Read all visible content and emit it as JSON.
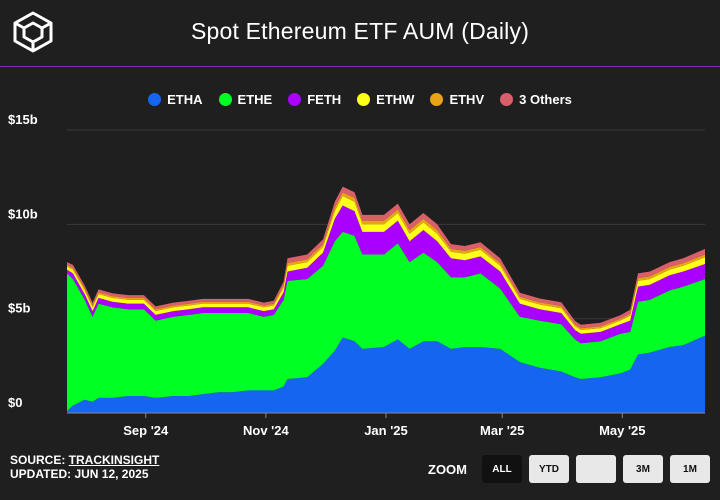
{
  "header": {
    "title": "Spot Ethereum ETF AUM (Daily)"
  },
  "colors": {
    "background": "#1f1f1f",
    "accent": "#7b2fbf"
  },
  "footer": {
    "source_prefix": "SOURCE: ",
    "source_link": "TRACKINSIGHT",
    "updated": "UPDATED: JUN 12, 2025"
  },
  "zoom": {
    "label": "ZOOM",
    "buttons": [
      {
        "label": "ALL",
        "active": true
      },
      {
        "label": "YTD",
        "active": false
      },
      {
        "label": "",
        "active": false
      },
      {
        "label": "3M",
        "active": false
      },
      {
        "label": "1M",
        "active": false
      }
    ]
  },
  "chart_data": {
    "type": "area",
    "stacked": true,
    "title": "Spot Ethereum ETF AUM (Daily)",
    "y_ticks": [
      "$0",
      "$5b",
      "$10b",
      "$15b"
    ],
    "ylim": [
      0,
      15
    ],
    "y_unit": "$b",
    "x_ticks": [
      "Sep '24",
      "Nov '24",
      "Jan '25",
      "Mar '25",
      "May '25"
    ],
    "x_tick_dates": [
      "2024-09-01",
      "2024-11-01",
      "2025-01-01",
      "2025-03-01",
      "2025-05-01"
    ],
    "x": [
      "2024-07-23",
      "2024-07-26",
      "2024-08-01",
      "2024-08-05",
      "2024-08-08",
      "2024-08-15",
      "2024-08-23",
      "2024-08-31",
      "2024-09-06",
      "2024-09-15",
      "2024-09-23",
      "2024-09-30",
      "2024-10-08",
      "2024-10-15",
      "2024-10-23",
      "2024-10-31",
      "2024-11-05",
      "2024-11-10",
      "2024-11-12",
      "2024-11-22",
      "2024-11-30",
      "2024-12-06",
      "2024-12-10",
      "2024-12-16",
      "2024-12-20",
      "2024-12-31",
      "2025-01-07",
      "2025-01-13",
      "2025-01-20",
      "2025-01-27",
      "2025-02-03",
      "2025-02-10",
      "2025-02-18",
      "2025-02-28",
      "2025-03-10",
      "2025-03-20",
      "2025-03-31",
      "2025-04-07",
      "2025-04-10",
      "2025-04-20",
      "2025-04-30",
      "2025-05-05",
      "2025-05-09",
      "2025-05-15",
      "2025-05-25",
      "2025-06-01",
      "2025-06-12"
    ],
    "legend_position": "top-center",
    "grid": true,
    "series": [
      {
        "name": "ETHA",
        "color": "#1565f0",
        "values": [
          0.1,
          0.4,
          0.7,
          0.6,
          0.8,
          0.8,
          0.9,
          0.9,
          0.8,
          0.9,
          0.9,
          1.0,
          1.1,
          1.1,
          1.2,
          1.2,
          1.2,
          1.4,
          1.8,
          1.9,
          2.6,
          3.3,
          4.0,
          3.8,
          3.4,
          3.5,
          3.9,
          3.4,
          3.8,
          3.8,
          3.4,
          3.5,
          3.5,
          3.4,
          2.7,
          2.4,
          2.2,
          1.9,
          1.8,
          1.9,
          2.1,
          2.3,
          3.1,
          3.2,
          3.5,
          3.6,
          4.1
        ]
      },
      {
        "name": "ETHE",
        "color": "#00ff22",
        "values": [
          7.3,
          6.7,
          5.3,
          4.5,
          5.0,
          4.8,
          4.6,
          4.6,
          4.1,
          4.2,
          4.3,
          4.3,
          4.2,
          4.2,
          4.1,
          3.9,
          4.0,
          4.6,
          5.2,
          5.2,
          5.2,
          5.8,
          5.6,
          5.6,
          5.0,
          4.9,
          5.1,
          4.6,
          4.7,
          4.2,
          3.8,
          3.7,
          3.9,
          3.2,
          2.4,
          2.5,
          2.5,
          2.0,
          1.9,
          1.9,
          2.1,
          2.0,
          2.8,
          2.8,
          3.0,
          3.1,
          3.0
        ]
      },
      {
        "name": "FETH",
        "color": "#aa00ff",
        "values": [
          0.2,
          0.3,
          0.3,
          0.3,
          0.3,
          0.3,
          0.3,
          0.3,
          0.3,
          0.3,
          0.3,
          0.3,
          0.3,
          0.3,
          0.3,
          0.3,
          0.3,
          0.4,
          0.5,
          0.6,
          0.7,
          1.2,
          1.4,
          1.3,
          1.2,
          1.2,
          1.2,
          1.1,
          1.2,
          1.1,
          1.0,
          0.9,
          0.9,
          0.9,
          0.7,
          0.6,
          0.6,
          0.5,
          0.5,
          0.5,
          0.5,
          0.6,
          0.8,
          0.8,
          0.8,
          0.8,
          0.8
        ]
      },
      {
        "name": "ETHW",
        "color": "#ffff1a",
        "values": [
          0.15,
          0.2,
          0.2,
          0.2,
          0.2,
          0.2,
          0.2,
          0.2,
          0.2,
          0.2,
          0.2,
          0.2,
          0.2,
          0.2,
          0.2,
          0.2,
          0.2,
          0.25,
          0.3,
          0.3,
          0.3,
          0.4,
          0.5,
          0.5,
          0.4,
          0.4,
          0.4,
          0.4,
          0.4,
          0.4,
          0.35,
          0.35,
          0.35,
          0.3,
          0.25,
          0.25,
          0.25,
          0.2,
          0.2,
          0.2,
          0.2,
          0.25,
          0.3,
          0.3,
          0.3,
          0.3,
          0.35
        ]
      },
      {
        "name": "ETHV",
        "color": "#e8a317",
        "values": [
          0.1,
          0.1,
          0.1,
          0.1,
          0.1,
          0.1,
          0.1,
          0.1,
          0.1,
          0.1,
          0.1,
          0.1,
          0.1,
          0.1,
          0.1,
          0.1,
          0.1,
          0.12,
          0.15,
          0.15,
          0.15,
          0.2,
          0.2,
          0.2,
          0.2,
          0.2,
          0.2,
          0.2,
          0.2,
          0.2,
          0.15,
          0.15,
          0.15,
          0.15,
          0.12,
          0.12,
          0.12,
          0.1,
          0.1,
          0.1,
          0.1,
          0.12,
          0.15,
          0.15,
          0.15,
          0.15,
          0.15
        ]
      },
      {
        "name": "3 Others",
        "color": "#d95f6a",
        "values": [
          0.15,
          0.15,
          0.15,
          0.15,
          0.15,
          0.15,
          0.15,
          0.15,
          0.15,
          0.15,
          0.15,
          0.15,
          0.15,
          0.15,
          0.15,
          0.15,
          0.15,
          0.2,
          0.25,
          0.25,
          0.25,
          0.3,
          0.3,
          0.3,
          0.3,
          0.3,
          0.3,
          0.3,
          0.3,
          0.3,
          0.25,
          0.25,
          0.25,
          0.25,
          0.2,
          0.2,
          0.2,
          0.18,
          0.18,
          0.18,
          0.18,
          0.2,
          0.25,
          0.25,
          0.25,
          0.25,
          0.3
        ]
      }
    ]
  }
}
